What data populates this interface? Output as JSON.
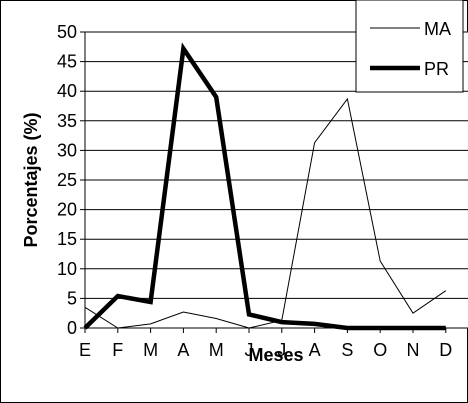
{
  "chart_data": {
    "type": "line",
    "xlabel": "Meses",
    "ylabel": "Porcentajes (%)",
    "ylim": [
      0,
      50
    ],
    "yticks": [
      0,
      5,
      10,
      15,
      20,
      25,
      30,
      35,
      40,
      45,
      50
    ],
    "categories": [
      "E",
      "F",
      "M",
      "A",
      "M",
      "J",
      "J",
      "A",
      "S",
      "O",
      "N",
      "D"
    ],
    "grid": "horizontal",
    "legend_position": "top-right",
    "series": [
      {
        "name": "MA",
        "style": "thin",
        "color": "#000000",
        "values": [
          3.5,
          0,
          0.7,
          2.7,
          1.6,
          0,
          1.3,
          31.3,
          38.7,
          11.3,
          2.5,
          6.3
        ]
      },
      {
        "name": "PR",
        "style": "thick",
        "color": "#000000",
        "values": [
          0,
          5.4,
          4.4,
          47.2,
          39.0,
          2.3,
          1.0,
          0.7,
          0,
          0,
          0,
          0
        ]
      }
    ]
  }
}
